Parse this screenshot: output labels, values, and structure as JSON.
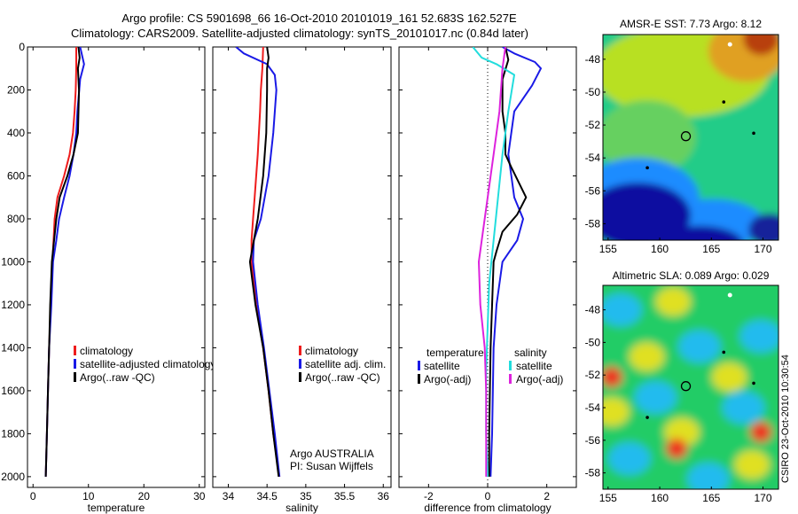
{
  "header": {
    "line1": "Argo profile: CS 5901698_66 16-Oct-2010 20101019_161 52.683S 162.527E",
    "line2": "Climatology: CARS2009. Satellite-adjusted climatology: synTS_20101017.nc (0.84d later)"
  },
  "credit": "CSIRO 23-Oct-2010 10:30:54",
  "colors": {
    "climatology": "#ee1c1c",
    "satellite": "#1a1ae6",
    "argo": "#000000",
    "salinity_satellite": "#22dddd",
    "salinity_argo": "#dd22dd"
  },
  "chart_data": [
    {
      "id": "temperature",
      "type": "line",
      "xlabel": "temperature",
      "xlim": [
        -1,
        31
      ],
      "xticks": [
        0,
        10,
        20,
        30
      ],
      "ylim": [
        2050,
        0
      ],
      "yticks": [
        0,
        200,
        400,
        600,
        800,
        1000,
        1200,
        1400,
        1600,
        1800,
        2000
      ],
      "yreverse": true,
      "legend": {
        "placement": "lower-left",
        "entries": [
          "climatology",
          "satellite-adjusted climatology",
          "Argo(..raw -QC)"
        ]
      },
      "series": [
        {
          "name": "climatology",
          "color": "#ee1c1c",
          "points": [
            [
              7.8,
              0
            ],
            [
              7.8,
              100
            ],
            [
              7.7,
              200
            ],
            [
              7.5,
              300
            ],
            [
              7.2,
              400
            ],
            [
              6.6,
              500
            ],
            [
              5.6,
              600
            ],
            [
              4.4,
              700
            ],
            [
              3.9,
              800
            ],
            [
              3.7,
              900
            ],
            [
              3.5,
              1000
            ],
            [
              3.2,
              1200
            ],
            [
              2.9,
              1400
            ],
            [
              2.7,
              1600
            ],
            [
              2.5,
              1800
            ],
            [
              2.3,
              2000
            ]
          ]
        },
        {
          "name": "satellite-adjusted climatology",
          "color": "#1a1ae6",
          "points": [
            [
              8.5,
              0
            ],
            [
              9.2,
              80
            ],
            [
              8.5,
              150
            ],
            [
              8.0,
              300
            ],
            [
              7.8,
              400
            ],
            [
              7.3,
              500
            ],
            [
              6.6,
              600
            ],
            [
              5.6,
              700
            ],
            [
              4.7,
              800
            ],
            [
              4.2,
              900
            ],
            [
              3.6,
              1000
            ],
            [
              3.3,
              1200
            ],
            [
              2.9,
              1400
            ],
            [
              2.7,
              1600
            ],
            [
              2.5,
              1800
            ],
            [
              2.3,
              2000
            ]
          ]
        },
        {
          "name": "Argo(..raw -QC)",
          "color": "#000000",
          "points": [
            [
              8.2,
              0
            ],
            [
              8.4,
              50
            ],
            [
              8.1,
              100
            ],
            [
              8.3,
              200
            ],
            [
              8.2,
              300
            ],
            [
              8.1,
              400
            ],
            [
              7.3,
              500
            ],
            [
              6.2,
              600
            ],
            [
              4.8,
              700
            ],
            [
              4.2,
              800
            ],
            [
              3.8,
              900
            ],
            [
              3.4,
              1000
            ],
            [
              3.1,
              1200
            ],
            [
              2.9,
              1400
            ],
            [
              2.7,
              1600
            ],
            [
              2.5,
              1800
            ],
            [
              2.3,
              2000
            ]
          ]
        }
      ]
    },
    {
      "id": "salinity",
      "type": "line",
      "xlabel": "salinity",
      "xlim": [
        33.8,
        36.1
      ],
      "xticks": [
        34,
        34.5,
        35,
        35.5,
        36
      ],
      "xticklabels": [
        "34",
        "34.5",
        "35",
        "35.5",
        "36"
      ],
      "ylim": [
        2050,
        0
      ],
      "yreverse": true,
      "legend": {
        "placement": "lower-right",
        "entries": [
          "climatology",
          "satellite adj. clim.",
          "Argo(..raw -QC)"
        ]
      },
      "annotation": [
        "Argo AUSTRALIA",
        "PI: Susan Wijffels"
      ],
      "series": [
        {
          "name": "climatology",
          "color": "#ee1c1c",
          "points": [
            [
              34.45,
              0
            ],
            [
              34.44,
              100
            ],
            [
              34.42,
              200
            ],
            [
              34.41,
              300
            ],
            [
              34.38,
              500
            ],
            [
              34.34,
              700
            ],
            [
              34.32,
              800
            ],
            [
              34.3,
              900
            ],
            [
              34.3,
              1000
            ],
            [
              34.36,
              1200
            ],
            [
              34.45,
              1400
            ],
            [
              34.52,
              1600
            ],
            [
              34.58,
              1800
            ],
            [
              34.66,
              2000
            ]
          ]
        },
        {
          "name": "satellite adj. clim.",
          "color": "#1a1ae6",
          "points": [
            [
              34.1,
              0
            ],
            [
              34.2,
              30
            ],
            [
              34.5,
              80
            ],
            [
              34.6,
              130
            ],
            [
              34.62,
              200
            ],
            [
              34.58,
              400
            ],
            [
              34.52,
              600
            ],
            [
              34.42,
              800
            ],
            [
              34.33,
              900
            ],
            [
              34.32,
              1000
            ],
            [
              34.38,
              1200
            ],
            [
              34.46,
              1400
            ],
            [
              34.53,
              1600
            ],
            [
              34.6,
              1800
            ],
            [
              34.66,
              2000
            ]
          ]
        },
        {
          "name": "Argo(..raw -QC)",
          "color": "#000000",
          "points": [
            [
              34.5,
              0
            ],
            [
              34.52,
              50
            ],
            [
              34.5,
              100
            ],
            [
              34.5,
              200
            ],
            [
              34.49,
              400
            ],
            [
              34.45,
              600
            ],
            [
              34.38,
              800
            ],
            [
              34.33,
              900
            ],
            [
              34.28,
              1000
            ],
            [
              34.35,
              1200
            ],
            [
              34.45,
              1400
            ],
            [
              34.52,
              1600
            ],
            [
              34.58,
              1800
            ],
            [
              34.65,
              2000
            ]
          ]
        }
      ]
    },
    {
      "id": "difference",
      "type": "line",
      "xlabel": "difference from climatology",
      "xlim": [
        -3,
        3
      ],
      "xticks": [
        -2,
        0,
        2
      ],
      "ylim": [
        2050,
        0
      ],
      "yreverse": true,
      "zero_line": "dotted",
      "legend": {
        "placement": "lower",
        "temperature_title": "temperature",
        "salinity_title": "salinity",
        "temperature_entries": [
          "satellite",
          "Argo(-adj)"
        ],
        "salinity_entries": [
          "satellite",
          "Argo(-adj)"
        ]
      },
      "series": [
        {
          "name": "temperature satellite",
          "color": "#1a1ae6",
          "points": [
            [
              0.5,
              0
            ],
            [
              0.9,
              30
            ],
            [
              1.6,
              70
            ],
            [
              1.8,
              100
            ],
            [
              1.5,
              180
            ],
            [
              0.9,
              300
            ],
            [
              0.7,
              500
            ],
            [
              0.8,
              600
            ],
            [
              0.9,
              700
            ],
            [
              1.2,
              800
            ],
            [
              1.0,
              900
            ],
            [
              0.5,
              1000
            ],
            [
              0.3,
              1200
            ],
            [
              0.2,
              1400
            ],
            [
              0.15,
              1800
            ],
            [
              0.1,
              2000
            ]
          ]
        },
        {
          "name": "temperature Argo(-adj)",
          "color": "#000000",
          "points": [
            [
              0.6,
              0
            ],
            [
              0.7,
              60
            ],
            [
              0.5,
              150
            ],
            [
              0.5,
              300
            ],
            [
              0.6,
              400
            ],
            [
              0.6,
              500
            ],
            [
              0.8,
              560
            ],
            [
              1.3,
              700
            ],
            [
              1.0,
              780
            ],
            [
              0.5,
              860
            ],
            [
              0.3,
              950
            ],
            [
              0.2,
              1000
            ],
            [
              0.15,
              1200
            ],
            [
              0.1,
              1400
            ],
            [
              0.05,
              1800
            ],
            [
              0.05,
              2000
            ]
          ]
        },
        {
          "name": "salinity satellite",
          "color": "#22dddd",
          "points": [
            [
              -0.5,
              0
            ],
            [
              -0.2,
              50
            ],
            [
              0.3,
              80
            ],
            [
              0.9,
              130
            ],
            [
              0.7,
              300
            ],
            [
              0.5,
              500
            ],
            [
              0.35,
              700
            ],
            [
              0.2,
              900
            ],
            [
              0.05,
              1100
            ],
            [
              0.0,
              1300
            ],
            [
              -0.05,
              1500
            ],
            [
              -0.05,
              1800
            ],
            [
              0.0,
              2000
            ]
          ]
        },
        {
          "name": "salinity Argo(-adj)",
          "color": "#dd22dd",
          "points": [
            [
              0.6,
              0
            ],
            [
              0.5,
              100
            ],
            [
              0.4,
              300
            ],
            [
              0.2,
              500
            ],
            [
              0.0,
              700
            ],
            [
              -0.2,
              900
            ],
            [
              -0.3,
              1000
            ],
            [
              -0.25,
              1200
            ],
            [
              -0.1,
              1400
            ],
            [
              -0.05,
              1600
            ],
            [
              -0.05,
              1800
            ],
            [
              -0.05,
              2000
            ]
          ]
        }
      ]
    }
  ],
  "maps": [
    {
      "id": "sst",
      "title": "AMSR-E SST: 7.73 Argo: 8.12",
      "xlim": [
        154.5,
        171.5
      ],
      "ylim": [
        -59,
        -46.5
      ],
      "xticks": [
        155,
        160,
        165,
        170
      ],
      "yticks": [
        -48,
        -50,
        -52,
        -54,
        -56,
        -58
      ],
      "profile_marker": {
        "lon": 162.53,
        "lat": -52.68
      },
      "colors": {
        "low": "#0a0aa0",
        "mid_low": "#1a8cff",
        "mid": "#22cc88",
        "mid_high": "#b8e020",
        "high": "#b84010"
      }
    },
    {
      "id": "sla",
      "title": "Altimetric SLA: 0.089 Argo: 0.029",
      "xlim": [
        154.5,
        171.5
      ],
      "ylim": [
        -59,
        -46.5
      ],
      "xticks": [
        155,
        160,
        165,
        170
      ],
      "yticks": [
        -48,
        -50,
        -52,
        -54,
        -56,
        -58
      ],
      "profile_marker": {
        "lon": 162.53,
        "lat": -52.68
      },
      "colors": {
        "low": "#22bbee",
        "mid": "#22cc66",
        "mid_high": "#e0e020",
        "high": "#ee3322"
      }
    }
  ]
}
